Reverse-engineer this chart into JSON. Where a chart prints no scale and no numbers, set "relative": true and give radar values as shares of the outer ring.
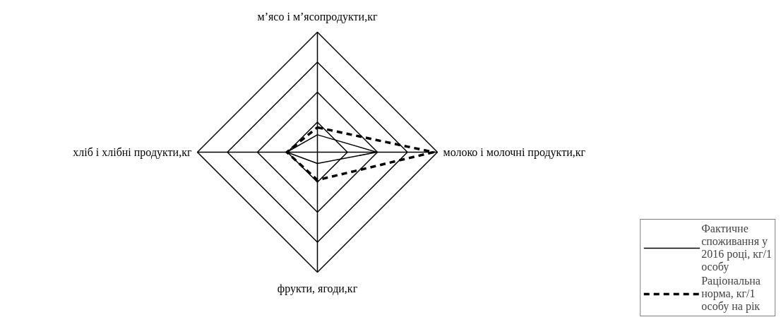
{
  "chart_data": {
    "type": "radar",
    "relative": true,
    "categories": [
      "м’ясо і м’ясопродукти,кг",
      "молоко і молочні продукти,кг",
      "фрукти, ягоди,кг",
      "хліб і хлібні продукти,кг"
    ],
    "series": [
      {
        "name": "Фактичне споживання у 2016 році, кг/1 особу",
        "color": "#000000",
        "line_style": "solid",
        "values": [
          0.145,
          0.495,
          0.094,
          0.255
        ]
      },
      {
        "name": "Раціональна норма, кг/1 особу на рік",
        "color": "#000000",
        "line_style": "dashed",
        "values": [
          0.206,
          0.967,
          0.232,
          0.255
        ]
      }
    ],
    "grid": true,
    "legend": "bottom right",
    "marker": "none"
  }
}
